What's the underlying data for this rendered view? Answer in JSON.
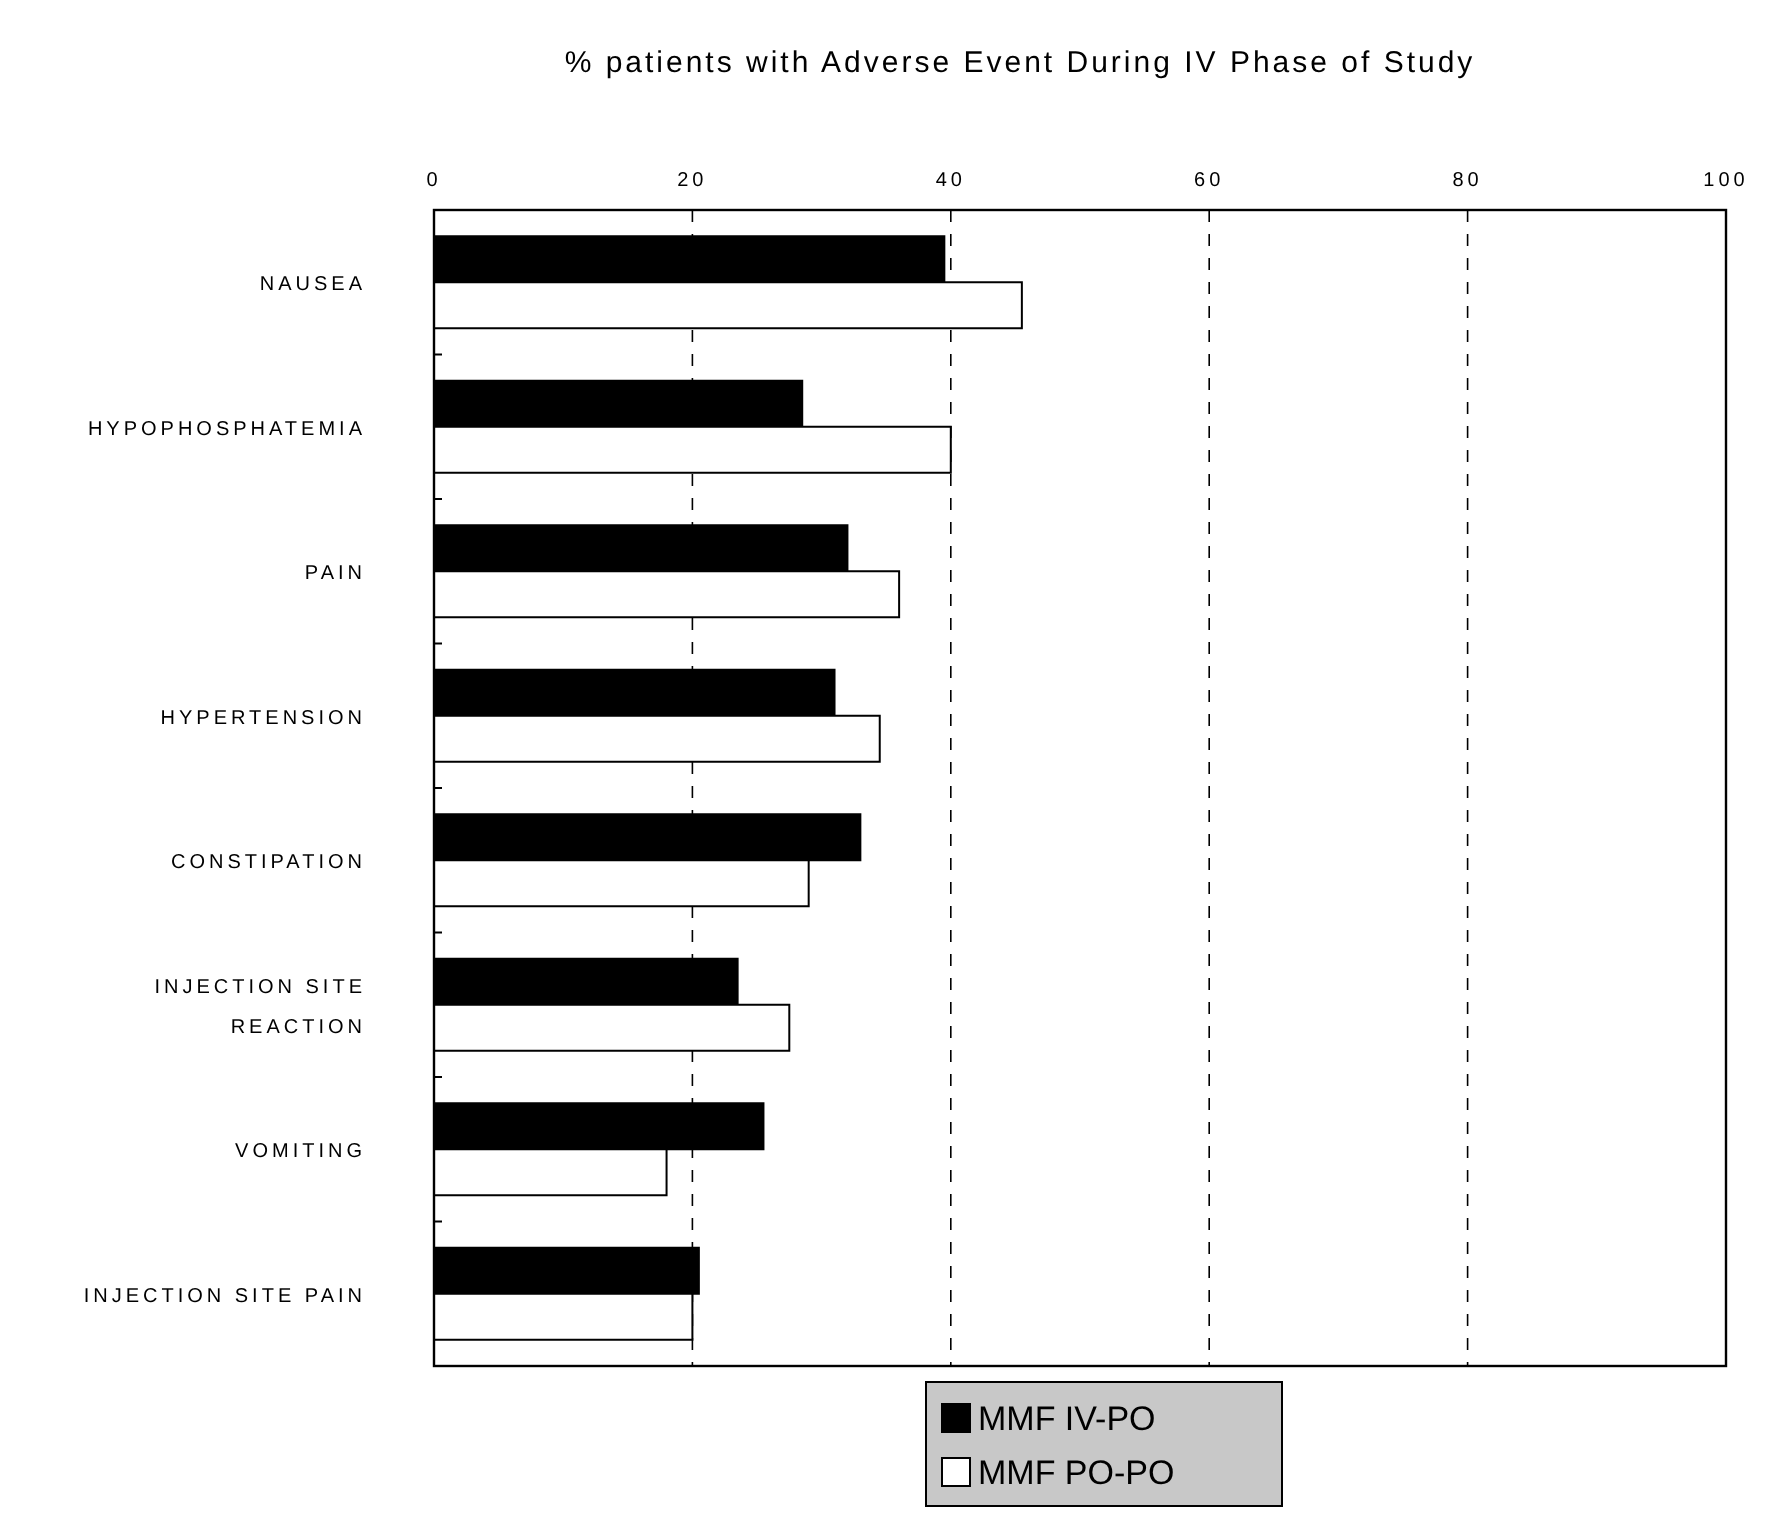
{
  "chart_data": {
    "type": "bar",
    "orientation": "horizontal",
    "title": "% patients with Adverse Event During IV Phase of Study",
    "categories": [
      "NAUSEA",
      "HYPOPHOSPHATEMIA",
      "PAIN",
      "HYPERTENSION",
      "CONSTIPATION",
      "INJECTION SITE REACTION",
      "VOMITING",
      "INJECTION SITE PAIN"
    ],
    "series": [
      {
        "name": "MMF IV-PO",
        "color": "#000000",
        "values": [
          39.5,
          28.5,
          32,
          31,
          33,
          23.5,
          25.5,
          20.5
        ]
      },
      {
        "name": "MMF PO-PO",
        "color": "#ffffff",
        "values": [
          45.5,
          40,
          36,
          34.5,
          29,
          27.5,
          18,
          20
        ]
      }
    ],
    "xlim": [
      0,
      100
    ],
    "xticks": [
      0,
      20,
      40,
      60,
      80,
      100
    ],
    "grid": "x",
    "legend": "bottom"
  }
}
